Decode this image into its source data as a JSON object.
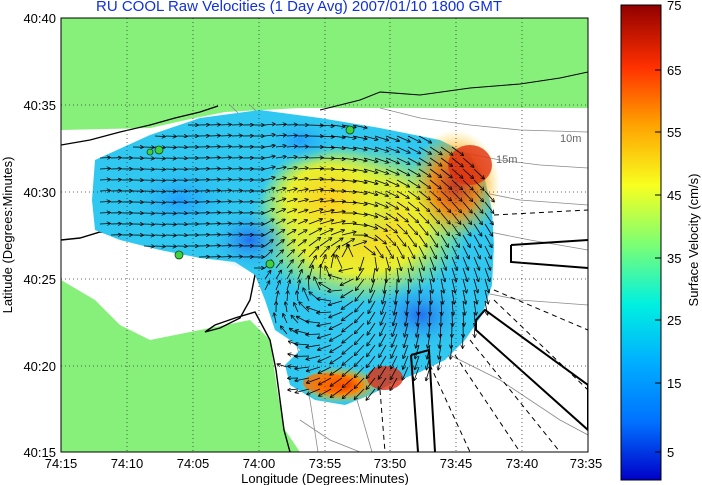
{
  "title": "RU COOL Raw Velocities (1 Day Avg) 2007/01/10 1800 GMT",
  "map": {
    "xlabel": "Longitude (Degrees:Minutes)",
    "ylabel": "Latitude (Degrees:Minutes)",
    "x_ticks": [
      "74:15",
      "74:10",
      "74:05",
      "74:00",
      "73:55",
      "73:50",
      "73:45",
      "73:40",
      "73:35"
    ],
    "y_ticks": [
      "40:40",
      "40:35",
      "40:30",
      "40:25",
      "40:20",
      "40:15"
    ],
    "depth_labels": [
      "10m",
      "15m"
    ],
    "colors": {
      "land": "#86f07a",
      "water": "#ffffff",
      "grid": "#222222"
    }
  },
  "colorbar": {
    "label": "Surface Velocity (cm/s)",
    "ticks": [
      "75",
      "65",
      "55",
      "45",
      "35",
      "25",
      "15",
      "5"
    ],
    "range": [
      0,
      75
    ],
    "colormap": "jet"
  },
  "stations": [
    {
      "name": "station-1"
    },
    {
      "name": "station-2"
    },
    {
      "name": "station-3"
    },
    {
      "name": "station-4"
    },
    {
      "name": "station-5"
    }
  ]
}
